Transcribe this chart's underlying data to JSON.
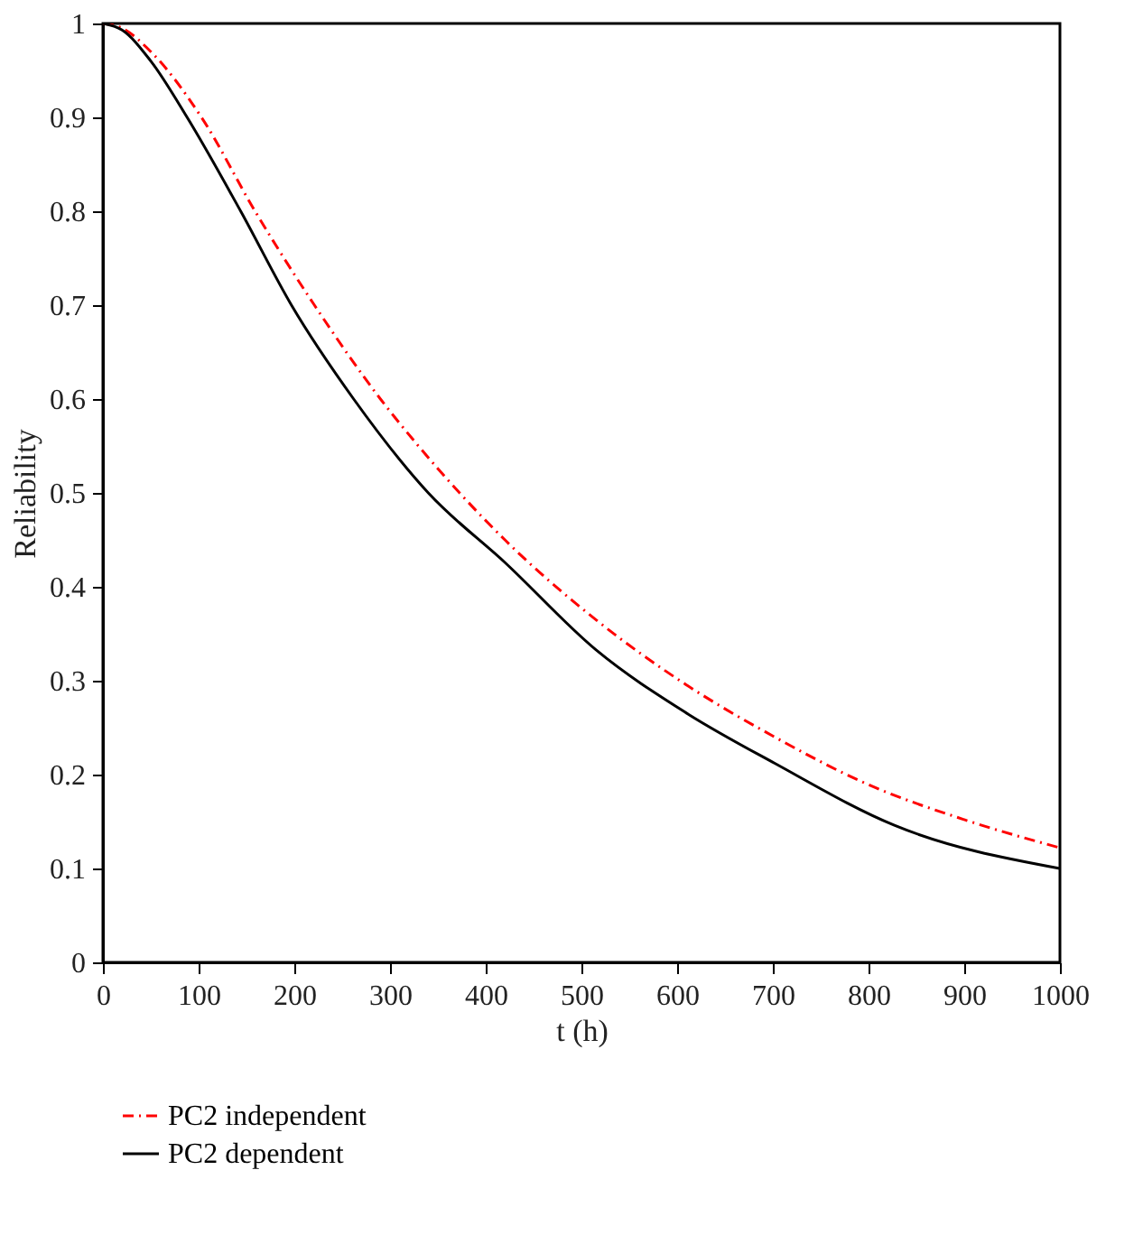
{
  "chart_data": {
    "type": "line",
    "xlabel": "t (h)",
    "ylabel": "Reliability",
    "xlim": [
      0,
      1000
    ],
    "ylim": [
      0,
      1
    ],
    "xticks": [
      0,
      100,
      200,
      300,
      400,
      500,
      600,
      700,
      800,
      900,
      1000
    ],
    "yticks": [
      0,
      0.1,
      0.2,
      0.3,
      0.4,
      0.5,
      0.6,
      0.7,
      0.8,
      0.9,
      1
    ],
    "grid": false,
    "legend": "bottom left",
    "marker": "none",
    "series": [
      {
        "name": "PC2 independent",
        "color": "#ff0000",
        "line_style": "dashdot",
        "x": [
          0,
          20,
          50,
          103,
          159,
          221,
          290,
          328,
          421,
          515,
          609,
          702,
          796,
          900,
          1000
        ],
        "values": [
          1,
          0.995,
          0.97,
          0.9,
          0.8,
          0.7,
          0.6,
          0.552,
          0.449,
          0.365,
          0.296,
          0.24,
          0.191,
          0.152,
          0.122
        ]
      },
      {
        "name": "PC2 dependent",
        "color": "#000000",
        "line_style": "solid",
        "x": [
          0,
          20,
          50,
          88,
          144,
          197,
          262,
          340,
          421,
          515,
          609,
          702,
          827,
          1000
        ],
        "values": [
          1,
          0.993,
          0.96,
          0.9,
          0.8,
          0.7,
          0.6,
          0.5,
          0.425,
          0.333,
          0.266,
          0.212,
          0.146,
          0.1
        ]
      }
    ]
  }
}
